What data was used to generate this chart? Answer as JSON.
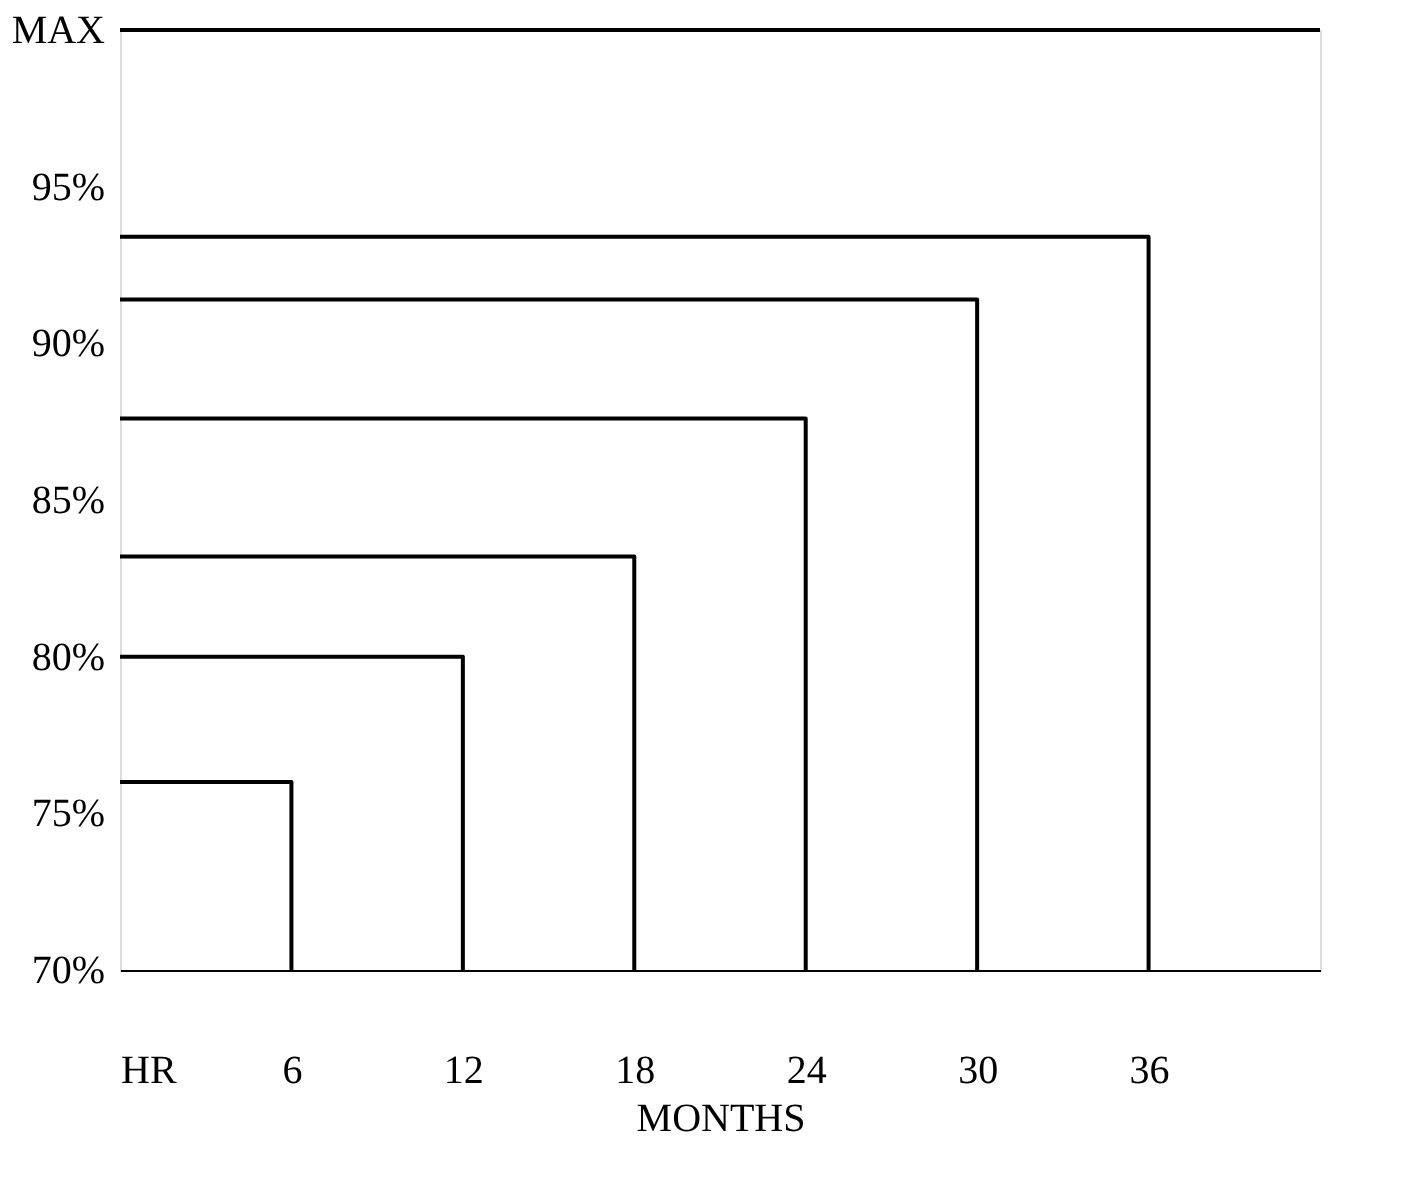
{
  "chart_data": {
    "type": "line",
    "xlabel": "MONTHS",
    "series": [
      {
        "color": "#000000",
        "x": [
          0,
          6,
          6
        ],
        "values": [
          76,
          76,
          70
        ]
      },
      {
        "color": "#000000",
        "x": [
          0,
          12,
          12
        ],
        "values": [
          80,
          80,
          70
        ]
      },
      {
        "color": "#000000",
        "x": [
          0,
          18,
          18
        ],
        "values": [
          83.2,
          83.2,
          70
        ]
      },
      {
        "color": "#000000",
        "x": [
          0,
          24,
          24
        ],
        "values": [
          87.6,
          87.6,
          70
        ]
      },
      {
        "color": "#000000",
        "x": [
          0,
          30,
          30
        ],
        "values": [
          91.4,
          91.4,
          70
        ]
      },
      {
        "color": "#000000",
        "x": [
          0,
          36,
          36
        ],
        "values": [
          93.4,
          93.4,
          70
        ]
      }
    ],
    "xlim": [
      0,
      42
    ],
    "xticks": [
      {
        "value": 0,
        "label": "HR"
      },
      6,
      12,
      18,
      24,
      30,
      36
    ],
    "ylim": [
      70,
      100
    ],
    "yticks": [
      {
        "value": 70,
        "label": "70%"
      },
      {
        "value": 75,
        "label": "75%"
      },
      {
        "value": 80,
        "label": "80%"
      },
      {
        "value": 85,
        "label": "85%"
      },
      {
        "value": 90,
        "label": "90%"
      },
      {
        "value": 95,
        "label": "95%"
      },
      {
        "value": 100,
        "label": "MAX"
      }
    ],
    "ref_lines": [
      {
        "axis": "y",
        "value": 100
      }
    ],
    "marker": "none",
    "line_style": "solid",
    "grid": false,
    "legend": false
  }
}
